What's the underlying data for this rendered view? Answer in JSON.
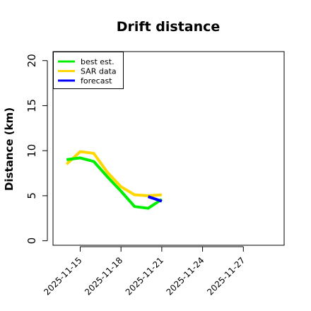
{
  "chart_data": {
    "type": "line",
    "title": "Drift distance",
    "xlabel": "",
    "ylabel": "Distance (km)",
    "x_ticks": [
      "2025-11-15",
      "2025-11-18",
      "2025-11-21",
      "2025-11-24",
      "2025-11-27"
    ],
    "xlim": [
      "2025-11-13",
      "2025-11-30"
    ],
    "ylim": [
      -0.5,
      21
    ],
    "y_ticks": [
      0,
      5,
      10,
      15,
      20
    ],
    "grid": false,
    "legend": "top-left",
    "series": [
      {
        "name": "best est.",
        "color": "#00ee00",
        "x": [
          "2025-11-14",
          "2025-11-15",
          "2025-11-16",
          "2025-11-17",
          "2025-11-18",
          "2025-11-19",
          "2025-11-20",
          "2025-11-21"
        ],
        "values": [
          9.0,
          9.2,
          8.8,
          7.1,
          5.5,
          3.8,
          3.6,
          4.6
        ]
      },
      {
        "name": "SAR data",
        "color": "#ffd700",
        "x": [
          "2025-11-14",
          "2025-11-15",
          "2025-11-16",
          "2025-11-17",
          "2025-11-18",
          "2025-11-19",
          "2025-11-20",
          "2025-11-21"
        ],
        "values": [
          8.5,
          9.9,
          9.7,
          7.6,
          6.0,
          5.1,
          5.0,
          5.1
        ]
      },
      {
        "name": "forecast",
        "color": "#0000ff",
        "x": [
          "2025-11-20",
          "2025-11-21"
        ],
        "values": [
          4.9,
          4.4
        ]
      }
    ]
  }
}
